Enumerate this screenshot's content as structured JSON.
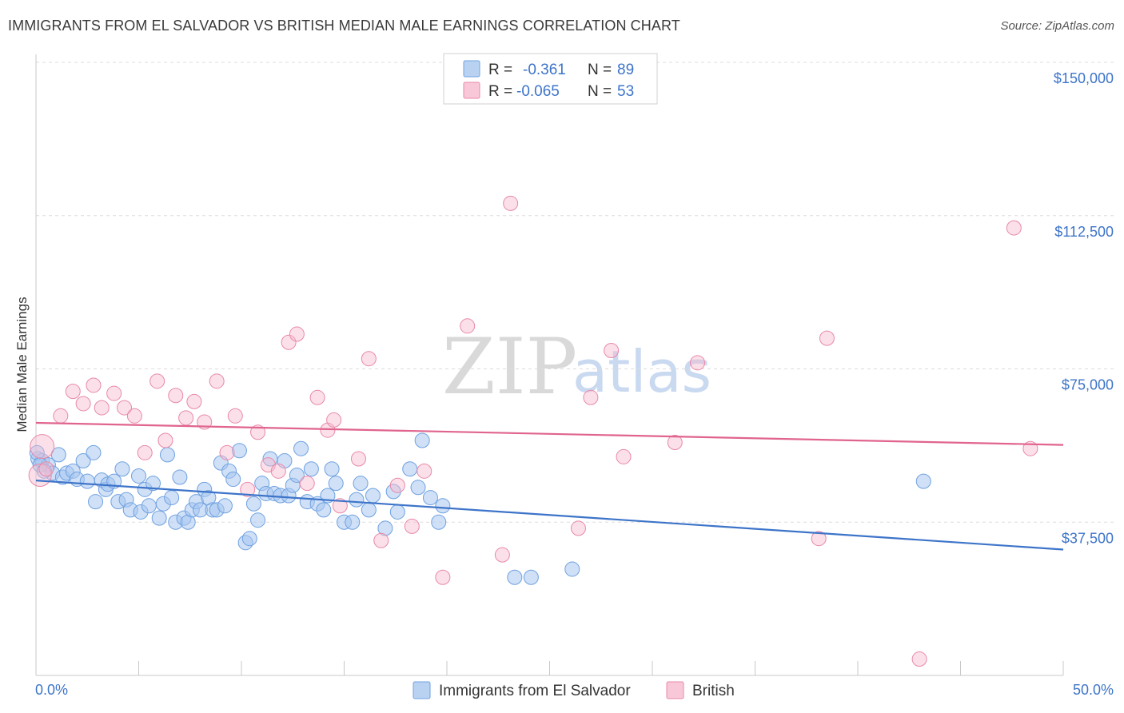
{
  "header": {
    "title": "IMMIGRANTS FROM EL SALVADOR VS BRITISH MEDIAN MALE EARNINGS CORRELATION CHART",
    "source": "Source: ZipAtlas.com"
  },
  "watermark": {
    "zip": "ZIP",
    "atlas": "atlas"
  },
  "legend": {
    "r_label": "R =",
    "n_label": "N =",
    "rows": [
      {
        "r": "-0.361",
        "n": "89",
        "color": "#6fa1e0",
        "fill": "#b9d2f2"
      },
      {
        "r": "-0.065",
        "n": "53",
        "color": "#e889a8",
        "fill": "#f8c8d8"
      }
    ]
  },
  "bottom_legend": {
    "items": [
      {
        "label": "Immigrants from El Salvador",
        "color": "#6fa1e0",
        "fill": "#b9d2f2"
      },
      {
        "label": "British",
        "color": "#e889a8",
        "fill": "#f8c8d8"
      }
    ]
  },
  "chart_data": {
    "type": "scatter",
    "title": "IMMIGRANTS FROM EL SALVADOR VS BRITISH MEDIAN MALE EARNINGS CORRELATION CHART",
    "xlabel": "",
    "ylabel": "Median Male Earnings",
    "xlim": [
      0,
      50
    ],
    "ylim": [
      0,
      150000
    ],
    "x_tick_labels": [
      "0.0%",
      "50.0%"
    ],
    "y_ticks": [
      37500,
      75000,
      112500,
      150000
    ],
    "y_tick_labels": [
      "$37,500",
      "$75,000",
      "$112,500",
      "$150,000"
    ],
    "grid": "horizontal dashed",
    "legend_placement": "top-center",
    "series": [
      {
        "name": "Immigrants from El Salvador",
        "color": "#3d74c9",
        "r": -0.361,
        "n": 89,
        "trend": {
          "x": [
            0,
            50
          ],
          "y": [
            47700,
            30800
          ]
        },
        "points": [
          [
            0.1,
            53000
          ],
          [
            0.3,
            52500
          ],
          [
            0.6,
            51500
          ],
          [
            0.8,
            49500
          ],
          [
            1.1,
            54000
          ],
          [
            1.3,
            48500
          ],
          [
            1.5,
            49500
          ],
          [
            1.8,
            50000
          ],
          [
            2.0,
            48000
          ],
          [
            2.3,
            52500
          ],
          [
            2.5,
            47500
          ],
          [
            2.8,
            54500
          ],
          [
            2.9,
            42500
          ],
          [
            3.2,
            47800
          ],
          [
            3.4,
            45500
          ],
          [
            3.5,
            46800
          ],
          [
            3.8,
            47500
          ],
          [
            4.0,
            42500
          ],
          [
            4.2,
            50500
          ],
          [
            4.4,
            43000
          ],
          [
            4.6,
            40500
          ],
          [
            5.0,
            48800
          ],
          [
            5.1,
            40000
          ],
          [
            5.3,
            45500
          ],
          [
            5.5,
            41500
          ],
          [
            5.7,
            47000
          ],
          [
            6.0,
            38500
          ],
          [
            6.2,
            42000
          ],
          [
            6.4,
            54000
          ],
          [
            6.6,
            43500
          ],
          [
            6.8,
            37500
          ],
          [
            7.0,
            48500
          ],
          [
            7.2,
            38500
          ],
          [
            7.4,
            37500
          ],
          [
            7.6,
            40500
          ],
          [
            7.8,
            42500
          ],
          [
            8.0,
            40500
          ],
          [
            8.2,
            45500
          ],
          [
            8.4,
            43500
          ],
          [
            8.6,
            40500
          ],
          [
            8.8,
            40500
          ],
          [
            9.0,
            52000
          ],
          [
            9.2,
            41500
          ],
          [
            9.4,
            50000
          ],
          [
            9.6,
            48000
          ],
          [
            9.9,
            55000
          ],
          [
            10.2,
            32500
          ],
          [
            10.4,
            33500
          ],
          [
            10.6,
            42000
          ],
          [
            10.8,
            38000
          ],
          [
            11.0,
            47000
          ],
          [
            11.2,
            44500
          ],
          [
            11.4,
            53000
          ],
          [
            11.6,
            44500
          ],
          [
            11.9,
            44000
          ],
          [
            12.1,
            52500
          ],
          [
            12.3,
            44000
          ],
          [
            12.5,
            46500
          ],
          [
            12.7,
            49000
          ],
          [
            12.9,
            55500
          ],
          [
            13.2,
            42500
          ],
          [
            13.4,
            50500
          ],
          [
            13.7,
            42000
          ],
          [
            14.0,
            40500
          ],
          [
            14.2,
            44000
          ],
          [
            14.4,
            50500
          ],
          [
            14.6,
            47000
          ],
          [
            15.0,
            37500
          ],
          [
            15.4,
            37500
          ],
          [
            15.6,
            43000
          ],
          [
            15.8,
            47000
          ],
          [
            16.2,
            40500
          ],
          [
            16.4,
            44000
          ],
          [
            17.0,
            36000
          ],
          [
            17.4,
            45000
          ],
          [
            17.6,
            40000
          ],
          [
            18.2,
            50500
          ],
          [
            18.6,
            46000
          ],
          [
            18.8,
            57500
          ],
          [
            19.2,
            43500
          ],
          [
            19.6,
            37500
          ],
          [
            19.8,
            41500
          ],
          [
            23.3,
            24000
          ],
          [
            24.1,
            24000
          ],
          [
            26.1,
            26000
          ],
          [
            43.2,
            47500
          ],
          [
            0.05,
            54500
          ],
          [
            0.2,
            51500
          ],
          [
            0.4,
            50000
          ]
        ]
      },
      {
        "name": "British",
        "color": "#e0648d",
        "r": -0.065,
        "n": 53,
        "trend": {
          "x": [
            0,
            50
          ],
          "y": [
            61800,
            56400
          ]
        },
        "points": [
          [
            0.3,
            56000
          ],
          [
            0.2,
            49000
          ],
          [
            0.5,
            50500
          ],
          [
            1.2,
            63500
          ],
          [
            1.8,
            69500
          ],
          [
            2.3,
            66500
          ],
          [
            2.8,
            71000
          ],
          [
            3.2,
            65500
          ],
          [
            3.8,
            69000
          ],
          [
            4.3,
            65500
          ],
          [
            4.8,
            63500
          ],
          [
            5.3,
            54500
          ],
          [
            5.9,
            72000
          ],
          [
            6.3,
            57500
          ],
          [
            6.8,
            68500
          ],
          [
            7.3,
            63000
          ],
          [
            7.7,
            67000
          ],
          [
            8.2,
            62000
          ],
          [
            8.8,
            72000
          ],
          [
            9.3,
            54500
          ],
          [
            9.7,
            63500
          ],
          [
            10.3,
            45500
          ],
          [
            10.8,
            59500
          ],
          [
            11.3,
            51500
          ],
          [
            11.8,
            50000
          ],
          [
            12.3,
            81500
          ],
          [
            12.7,
            83500
          ],
          [
            13.2,
            47000
          ],
          [
            13.7,
            68000
          ],
          [
            14.2,
            60000
          ],
          [
            14.5,
            62500
          ],
          [
            14.8,
            41500
          ],
          [
            15.7,
            53000
          ],
          [
            16.2,
            77500
          ],
          [
            16.8,
            33000
          ],
          [
            17.6,
            46500
          ],
          [
            18.3,
            36500
          ],
          [
            18.9,
            50000
          ],
          [
            19.8,
            24000
          ],
          [
            21.0,
            85500
          ],
          [
            22.7,
            29500
          ],
          [
            23.1,
            115500
          ],
          [
            26.4,
            36000
          ],
          [
            27.0,
            68000
          ],
          [
            28.0,
            79500
          ],
          [
            28.6,
            53500
          ],
          [
            31.1,
            57000
          ],
          [
            32.2,
            76500
          ],
          [
            38.1,
            33500
          ],
          [
            38.5,
            82500
          ],
          [
            43.0,
            4000
          ],
          [
            47.6,
            109500
          ],
          [
            48.4,
            55500
          ]
        ]
      }
    ]
  }
}
